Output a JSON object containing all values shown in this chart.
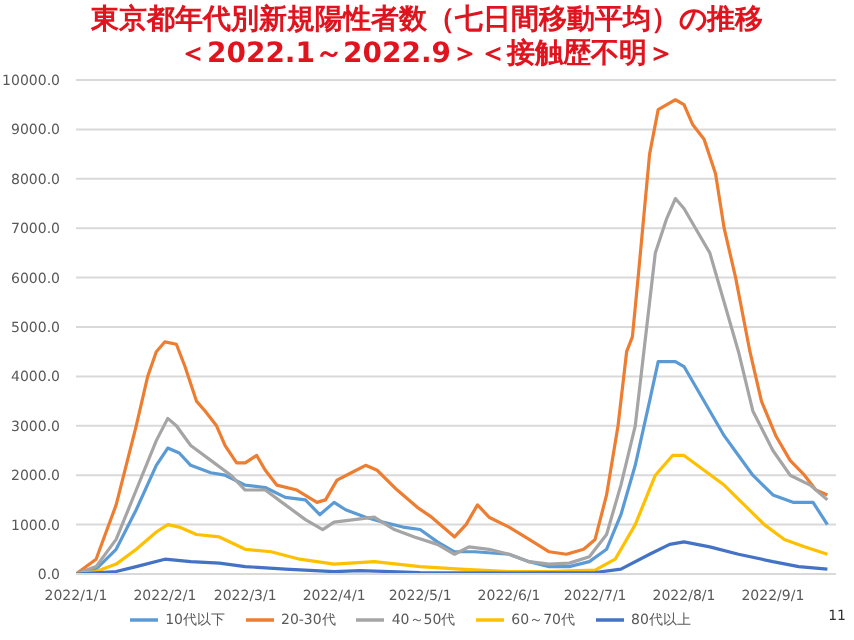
{
  "chart_data": {
    "type": "line",
    "title": "東京都年代別新規陽性者数（七日間移動平均）の推移",
    "subtitle": "＜2022.1～2022.9＞＜接触歴不明＞",
    "annotations": [
      "11"
    ],
    "xlim": [
      "2022-01-01",
      "2022-09-23"
    ],
    "xticks": [
      {
        "value": "2022-01-01",
        "label": "2022/1/1"
      },
      {
        "value": "2022-02-01",
        "label": "2022/2/1"
      },
      {
        "value": "2022-03-01",
        "label": "2022/3/1"
      },
      {
        "value": "2022-04-01",
        "label": "2022/4/1"
      },
      {
        "value": "2022-05-01",
        "label": "2022/5/1"
      },
      {
        "value": "2022-06-01",
        "label": "2022/6/1"
      },
      {
        "value": "2022-07-01",
        "label": "2022/7/1"
      },
      {
        "value": "2022-08-01",
        "label": "2022/8/1"
      },
      {
        "value": "2022-09-01",
        "label": "2022/9/1"
      }
    ],
    "ylim": [
      0,
      10000
    ],
    "yticks": [
      {
        "value": 0,
        "label": "0.0"
      },
      {
        "value": 1000,
        "label": "1000.0"
      },
      {
        "value": 2000,
        "label": "2000.0"
      },
      {
        "value": 3000,
        "label": "3000.0"
      },
      {
        "value": 4000,
        "label": "4000.0"
      },
      {
        "value": 5000,
        "label": "5000.0"
      },
      {
        "value": 6000,
        "label": "6000.0"
      },
      {
        "value": 7000,
        "label": "7000.0"
      },
      {
        "value": 8000,
        "label": "8000.0"
      },
      {
        "value": 9000,
        "label": "9000.0"
      },
      {
        "value": 10000,
        "label": "10000.0"
      }
    ],
    "grid": "y",
    "legend": "bottom",
    "marker": "none",
    "line_style": "solid",
    "series": [
      {
        "name": "10代以下",
        "color": "#5b9bd5",
        "x": [
          "2022-01-01",
          "2022-01-08",
          "2022-01-15",
          "2022-01-22",
          "2022-01-29",
          "2022-02-02",
          "2022-02-06",
          "2022-02-10",
          "2022-02-17",
          "2022-02-22",
          "2022-03-01",
          "2022-03-08",
          "2022-03-15",
          "2022-03-22",
          "2022-03-27",
          "2022-04-01",
          "2022-04-05",
          "2022-04-12",
          "2022-04-18",
          "2022-04-25",
          "2022-05-01",
          "2022-05-07",
          "2022-05-13",
          "2022-05-20",
          "2022-06-01",
          "2022-06-08",
          "2022-06-15",
          "2022-06-22",
          "2022-06-29",
          "2022-07-05",
          "2022-07-10",
          "2022-07-15",
          "2022-07-20",
          "2022-07-23",
          "2022-07-29",
          "2022-08-01",
          "2022-08-05",
          "2022-08-10",
          "2022-08-15",
          "2022-08-20",
          "2022-08-25",
          "2022-09-01",
          "2022-09-08",
          "2022-09-15",
          "2022-09-20"
        ],
        "values": [
          0,
          100,
          500,
          1300,
          2200,
          2550,
          2450,
          2200,
          2050,
          2000,
          1800,
          1750,
          1550,
          1500,
          1200,
          1450,
          1300,
          1150,
          1050,
          950,
          900,
          650,
          450,
          450,
          400,
          250,
          150,
          150,
          250,
          500,
          1200,
          2200,
          3500,
          4300,
          4300,
          4200,
          3800,
          3300,
          2800,
          2400,
          2000,
          1600,
          1450,
          1450,
          1000
        ]
      },
      {
        "name": "20-30代",
        "color": "#ed7d31",
        "x": [
          "2022-01-01",
          "2022-01-08",
          "2022-01-15",
          "2022-01-22",
          "2022-01-26",
          "2022-01-29",
          "2022-02-01",
          "2022-02-05",
          "2022-02-08",
          "2022-02-12",
          "2022-02-15",
          "2022-02-19",
          "2022-02-22",
          "2022-02-26",
          "2022-03-01",
          "2022-03-05",
          "2022-03-08",
          "2022-03-12",
          "2022-03-19",
          "2022-03-26",
          "2022-03-29",
          "2022-04-02",
          "2022-04-07",
          "2022-04-12",
          "2022-04-16",
          "2022-04-23",
          "2022-04-30",
          "2022-05-05",
          "2022-05-10",
          "2022-05-13",
          "2022-05-17",
          "2022-05-21",
          "2022-05-25",
          "2022-06-01",
          "2022-06-08",
          "2022-06-15",
          "2022-06-21",
          "2022-06-27",
          "2022-07-01",
          "2022-07-05",
          "2022-07-09",
          "2022-07-12",
          "2022-07-14",
          "2022-07-16",
          "2022-07-20",
          "2022-07-23",
          "2022-07-26",
          "2022-07-29",
          "2022-08-01",
          "2022-08-04",
          "2022-08-08",
          "2022-08-12",
          "2022-08-15",
          "2022-08-19",
          "2022-08-24",
          "2022-08-28",
          "2022-09-02",
          "2022-09-07",
          "2022-09-12",
          "2022-09-16",
          "2022-09-20"
        ],
        "values": [
          0,
          300,
          1400,
          3000,
          4000,
          4500,
          4700,
          4650,
          4200,
          3500,
          3300,
          3000,
          2600,
          2250,
          2250,
          2400,
          2100,
          1800,
          1700,
          1450,
          1500,
          1900,
          2050,
          2200,
          2100,
          1700,
          1350,
          1150,
          900,
          750,
          1000,
          1400,
          1150,
          950,
          700,
          450,
          400,
          500,
          700,
          1600,
          3000,
          4500,
          4800,
          6000,
          8500,
          9400,
          9500,
          9600,
          9500,
          9100,
          8800,
          8100,
          7000,
          6000,
          4500,
          3500,
          2800,
          2300,
          2000,
          1700,
          1600
        ]
      },
      {
        "name": "40～50代",
        "color": "#a5a5a5",
        "x": [
          "2022-01-01",
          "2022-01-08",
          "2022-01-15",
          "2022-01-22",
          "2022-01-29",
          "2022-02-02",
          "2022-02-05",
          "2022-02-10",
          "2022-02-17",
          "2022-02-24",
          "2022-03-01",
          "2022-03-08",
          "2022-03-15",
          "2022-03-22",
          "2022-03-28",
          "2022-04-01",
          "2022-04-08",
          "2022-04-15",
          "2022-04-22",
          "2022-04-29",
          "2022-05-07",
          "2022-05-13",
          "2022-05-18",
          "2022-05-25",
          "2022-06-01",
          "2022-06-08",
          "2022-06-15",
          "2022-06-22",
          "2022-06-29",
          "2022-07-05",
          "2022-07-10",
          "2022-07-15",
          "2022-07-18",
          "2022-07-22",
          "2022-07-26",
          "2022-07-29",
          "2022-08-01",
          "2022-08-05",
          "2022-08-10",
          "2022-08-15",
          "2022-08-20",
          "2022-08-25",
          "2022-09-01",
          "2022-09-07",
          "2022-09-14",
          "2022-09-20"
        ],
        "values": [
          0,
          150,
          700,
          1700,
          2700,
          3150,
          3000,
          2600,
          2300,
          2000,
          1700,
          1700,
          1400,
          1100,
          900,
          1050,
          1100,
          1150,
          900,
          750,
          600,
          400,
          550,
          500,
          400,
          250,
          200,
          220,
          350,
          800,
          1800,
          3000,
          4500,
          6500,
          7200,
          7600,
          7400,
          7000,
          6500,
          5500,
          4500,
          3300,
          2500,
          2000,
          1800,
          1500
        ]
      },
      {
        "name": "60～70代",
        "color": "#ffc000",
        "x": [
          "2022-01-01",
          "2022-01-08",
          "2022-01-15",
          "2022-01-22",
          "2022-01-29",
          "2022-02-02",
          "2022-02-06",
          "2022-02-12",
          "2022-02-20",
          "2022-03-01",
          "2022-03-10",
          "2022-03-20",
          "2022-04-01",
          "2022-04-15",
          "2022-05-01",
          "2022-05-15",
          "2022-06-01",
          "2022-06-15",
          "2022-07-01",
          "2022-07-08",
          "2022-07-15",
          "2022-07-22",
          "2022-07-28",
          "2022-08-01",
          "2022-08-08",
          "2022-08-15",
          "2022-08-22",
          "2022-08-29",
          "2022-09-05",
          "2022-09-12",
          "2022-09-20"
        ],
        "values": [
          0,
          50,
          200,
          500,
          850,
          1000,
          950,
          800,
          750,
          500,
          450,
          300,
          200,
          250,
          150,
          100,
          50,
          50,
          80,
          300,
          1000,
          2000,
          2400,
          2400,
          2100,
          1800,
          1400,
          1000,
          700,
          550,
          400
        ]
      },
      {
        "name": "80代以上",
        "color": "#4472c4",
        "x": [
          "2022-01-01",
          "2022-01-15",
          "2022-01-22",
          "2022-02-01",
          "2022-02-10",
          "2022-02-20",
          "2022-03-01",
          "2022-03-15",
          "2022-04-01",
          "2022-04-10",
          "2022-05-01",
          "2022-06-01",
          "2022-07-01",
          "2022-07-10",
          "2022-07-20",
          "2022-07-27",
          "2022-08-01",
          "2022-08-10",
          "2022-08-20",
          "2022-09-01",
          "2022-09-10",
          "2022-09-20"
        ],
        "values": [
          0,
          50,
          150,
          300,
          250,
          220,
          150,
          100,
          50,
          70,
          30,
          20,
          30,
          100,
          400,
          600,
          650,
          550,
          400,
          250,
          150,
          100
        ]
      }
    ]
  }
}
